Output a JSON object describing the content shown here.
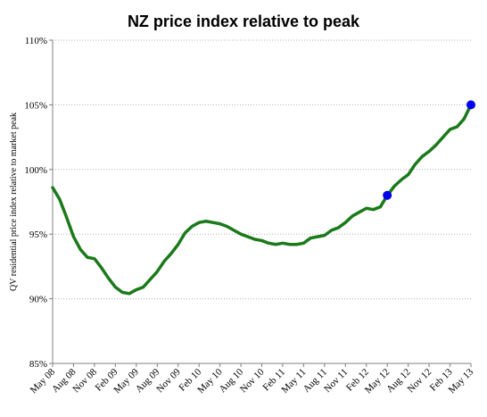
{
  "chart_data": {
    "type": "line",
    "title": "NZ price index relative to peak",
    "xlabel": "",
    "ylabel": "QV residential price index relative to market peak",
    "ylim": [
      85,
      110
    ],
    "y_unit": "%",
    "y_ticks": [
      "85%",
      "90%",
      "95%",
      "100%",
      "105%",
      "110%"
    ],
    "x_ticks": [
      "May 08",
      "Aug 08",
      "Nov 08",
      "Feb 09",
      "May 09",
      "Aug 09",
      "Nov 09",
      "Feb 10",
      "May 10",
      "Aug 10",
      "Nov 10",
      "Feb 11",
      "May 11",
      "Aug 11",
      "Nov 11",
      "Feb 12",
      "May 12",
      "Aug 12",
      "Nov 12",
      "Feb 13",
      "May 13"
    ],
    "grid": "horizontal",
    "line_color": "#1a7a1a",
    "marker_color": "#0000ee",
    "series": [
      {
        "values": [
          98.6,
          97.7,
          96.3,
          94.8,
          93.8,
          93.2,
          93.1,
          92.4,
          91.6,
          90.9,
          90.5,
          90.4,
          90.7,
          90.9,
          91.5,
          92.1,
          92.9,
          93.5,
          94.2,
          95.1,
          95.6,
          95.9,
          96.0,
          95.9,
          95.8,
          95.6,
          95.3,
          95.0,
          94.8,
          94.6,
          94.5,
          94.3,
          94.2,
          94.3,
          94.2,
          94.2,
          94.3,
          94.7,
          94.8,
          94.9,
          95.3,
          95.5,
          95.9,
          96.4,
          96.7,
          97.0,
          96.9,
          97.1,
          98.0,
          98.7,
          99.2,
          99.6,
          100.4,
          101.0,
          101.4,
          101.9,
          102.5,
          103.1,
          103.3,
          103.9,
          105.0
        ]
      }
    ],
    "highlighted_points": [
      {
        "x": "May 12",
        "value": 98.0
      },
      {
        "x": "May 13",
        "value": 105.0
      }
    ]
  }
}
